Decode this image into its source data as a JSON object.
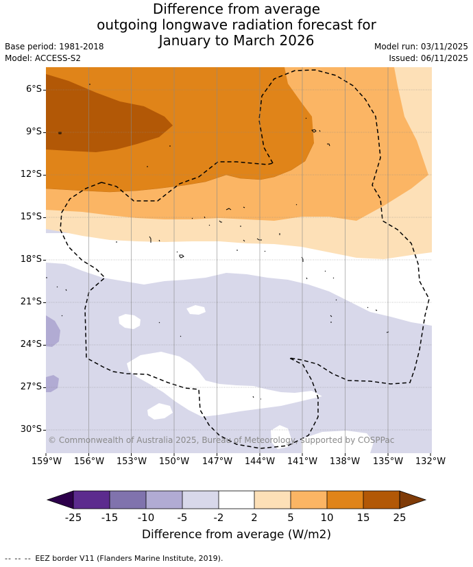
{
  "title": {
    "line1": "Difference from average",
    "line2": "outgoing longwave radiation forecast for",
    "line3": "January to March 2026"
  },
  "meta": {
    "base_period": "Base period: 1981-2018",
    "model": "Model: ACCESS-S2",
    "model_run": "Model run: 03/11/2025",
    "issued": "Issued: 06/11/2025"
  },
  "map": {
    "lat_labels": [
      "6°S",
      "9°S",
      "12°S",
      "15°S",
      "18°S",
      "21°S",
      "24°S",
      "27°S",
      "30°S"
    ],
    "lon_labels": [
      "159°W",
      "156°W",
      "153°W",
      "150°W",
      "147°W",
      "144°W",
      "141°W",
      "138°W",
      "135°W",
      "132°W"
    ],
    "copyright": "© Commonwealth of Australia 2025, Bureau of Meteorology, supported by COSPPac",
    "colors": {
      "c_m25_m15": "#5c2b8e",
      "c_m15_m10": "#8073ad",
      "c_m10_m5": "#b1abd3",
      "c_m5_m2": "#d8d8ea",
      "c_m2_2": "#ffffff",
      "c_2_5": "#fde0b7",
      "c_5_10": "#fbb564",
      "c_10_15": "#e08419",
      "c_15_25": "#b25806"
    }
  },
  "colorbar": {
    "ticks": [
      "-25",
      "-15",
      "-10",
      "-5",
      "-2",
      "2",
      "5",
      "10",
      "15",
      "25"
    ],
    "label": "Difference from average (W/m2)",
    "colors": [
      "#2d004b",
      "#5c2b8e",
      "#8073ad",
      "#b1abd3",
      "#d8d8ea",
      "#ffffff",
      "#fde0b7",
      "#fbb564",
      "#e08419",
      "#b25806",
      "#7f3b08"
    ]
  },
  "footer": {
    "dashes": "-- -- --",
    "text": "EEZ border V11 (Flanders Marine Institute, 2019)."
  }
}
